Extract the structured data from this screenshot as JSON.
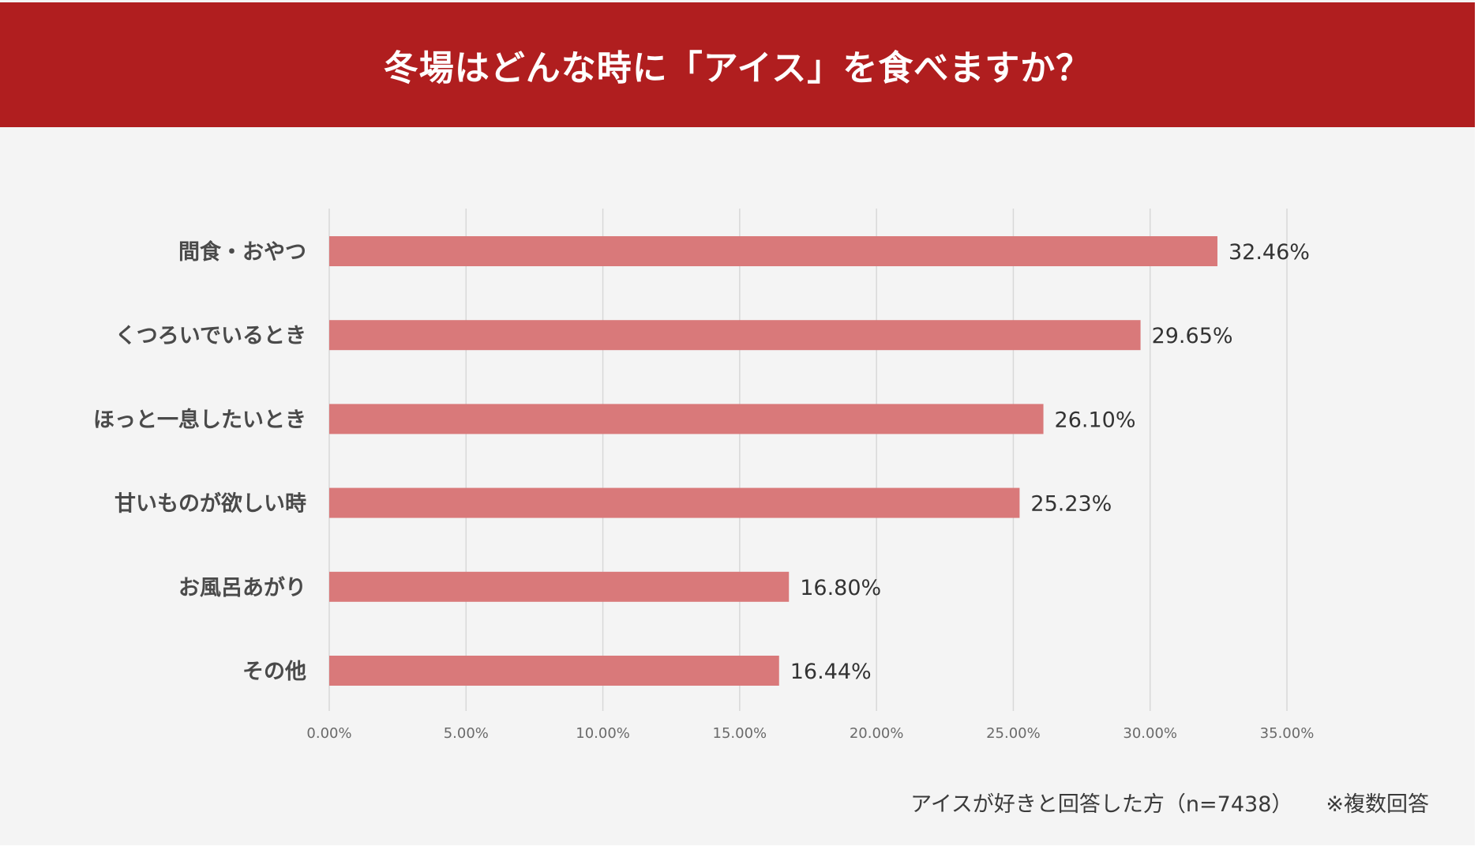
{
  "header": {
    "title": "冬場はどんな時に「アイス」を食べますか？"
  },
  "colors": {
    "header_bg": "#b01e1f",
    "bar": "#d9797a",
    "grid": "#d8d8d8",
    "background": "#f4f4f4"
  },
  "chart_data": {
    "type": "bar",
    "orientation": "horizontal",
    "title": "冬場はどんな時に「アイス」を食べますか？",
    "categories": [
      "間食・おやつ",
      "くつろいでいるとき",
      "ほっと一息したいとき",
      "甘いものが欲しい時",
      "お風呂あがり",
      "その他"
    ],
    "values": [
      32.46,
      29.65,
      26.1,
      25.23,
      16.8,
      16.44
    ],
    "value_labels": [
      "32.46%",
      "29.65%",
      "26.10%",
      "25.23%",
      "16.80%",
      "16.44%"
    ],
    "xlim": [
      0,
      35
    ],
    "xticks": [
      0,
      5,
      10,
      15,
      20,
      25,
      30,
      35
    ],
    "xtick_labels": [
      "0.00%",
      "5.00%",
      "10.00%",
      "15.00%",
      "20.00%",
      "25.00%",
      "30.00%",
      "35.00%"
    ],
    "xlabel": "",
    "ylabel": "",
    "grid": true,
    "legend": "none"
  },
  "footnote": {
    "sample": "アイスが好きと回答した方（n=7438）",
    "note": "※複数回答"
  }
}
